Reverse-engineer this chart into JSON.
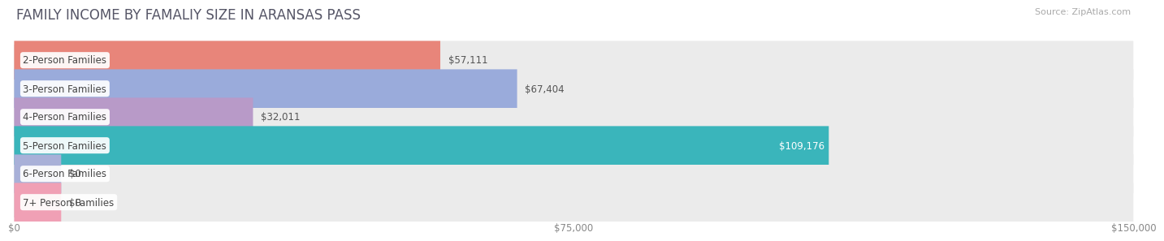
{
  "title": "FAMILY INCOME BY FAMALIY SIZE IN ARANSAS PASS",
  "source": "Source: ZipAtlas.com",
  "categories": [
    "2-Person Families",
    "3-Person Families",
    "4-Person Families",
    "5-Person Families",
    "6-Person Families",
    "7+ Person Families"
  ],
  "values": [
    57111,
    67404,
    32011,
    109176,
    0,
    0
  ],
  "bar_colors": [
    "#e8857a",
    "#9aabdb",
    "#b89ac8",
    "#3ab5bb",
    "#a8b0d8",
    "#f0a0b5"
  ],
  "value_labels": [
    "$57,111",
    "$67,404",
    "$32,011",
    "$109,176",
    "$0",
    "$0"
  ],
  "xlim": [
    0,
    150000
  ],
  "xticks": [
    0,
    75000,
    150000
  ],
  "xtick_labels": [
    "$0",
    "$75,000",
    "$150,000"
  ],
  "background_color": "#ffffff",
  "bar_bg_color": "#ebebeb",
  "bar_height": 0.68,
  "title_fontsize": 12,
  "label_fontsize": 8.5,
  "value_fontsize": 8.5,
  "tick_fontsize": 8.5,
  "source_fontsize": 8
}
